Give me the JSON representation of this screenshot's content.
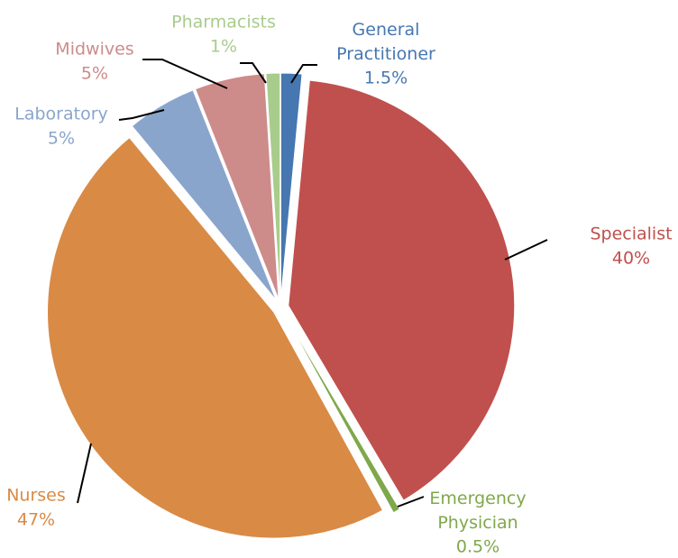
{
  "chart_data": {
    "type": "pie",
    "categories": [
      "General Practitioner",
      "Specialist",
      "Emergency Physician",
      "Nurses",
      "Laboratory",
      "Midwives",
      "Pharmacists"
    ],
    "values": [
      1.5,
      40,
      0.5,
      47,
      5,
      5,
      1
    ],
    "value_labels": [
      "1.5%",
      "40%",
      "0.5%",
      "47%",
      "5%",
      "5%",
      "1%"
    ],
    "colors": [
      "#4677b0",
      "#c0504d",
      "#7fa84a",
      "#d98a45",
      "#8aa5cc",
      "#cd8b8a",
      "#a8cc8c"
    ]
  }
}
